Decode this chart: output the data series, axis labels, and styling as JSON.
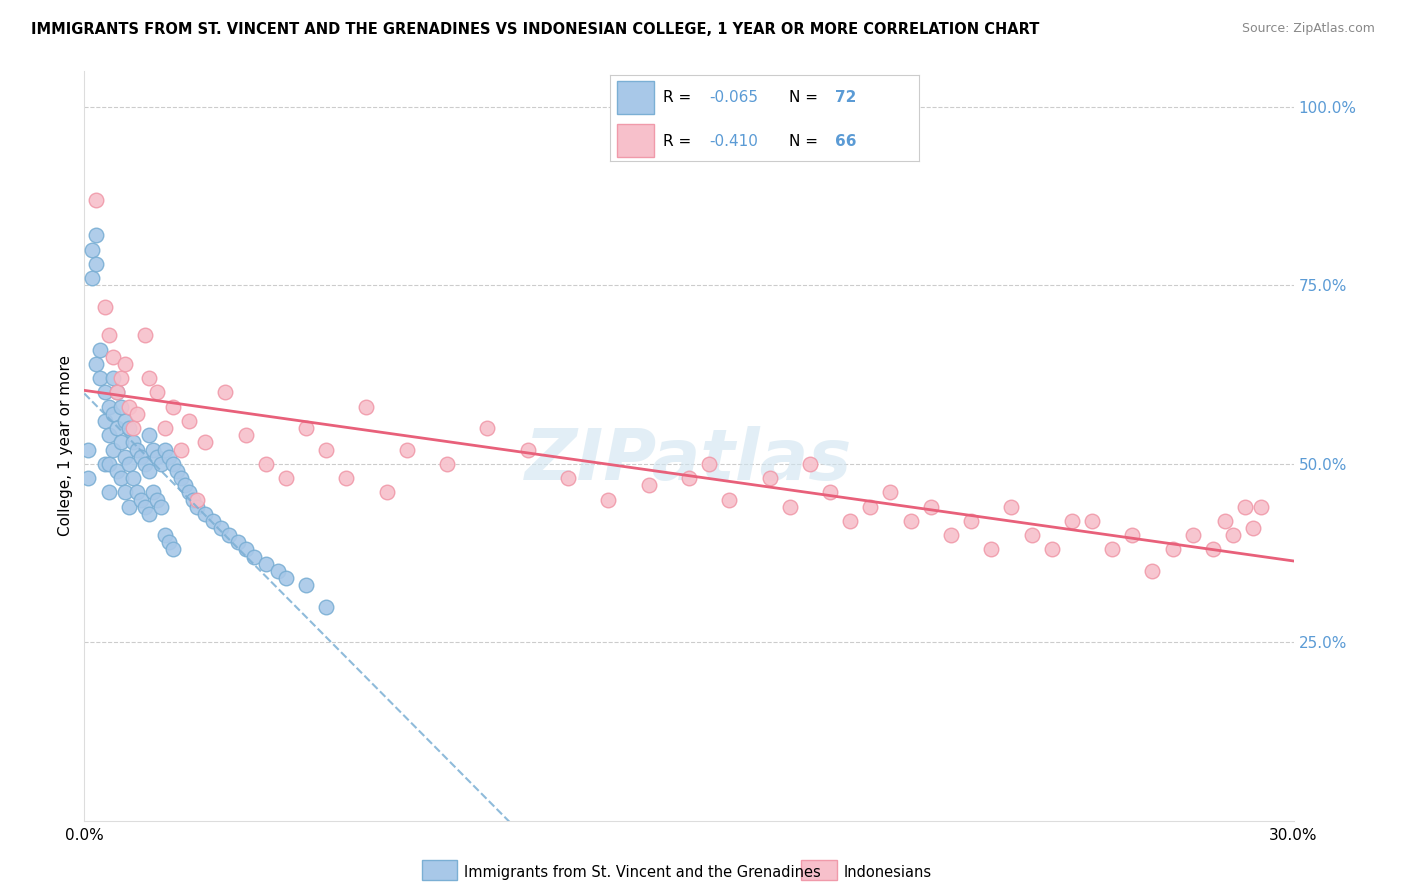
{
  "title": "IMMIGRANTS FROM ST. VINCENT AND THE GRENADINES VS INDONESIAN COLLEGE, 1 YEAR OR MORE CORRELATION CHART",
  "source": "Source: ZipAtlas.com",
  "ylabel": "College, 1 year or more",
  "xlim": [
    0.0,
    0.3
  ],
  "ylim": [
    0.0,
    1.05
  ],
  "yticks_right": [
    0.25,
    0.5,
    0.75,
    1.0
  ],
  "ytick_right_labels": [
    "25.0%",
    "50.0%",
    "75.0%",
    "100.0%"
  ],
  "blue_R": -0.065,
  "blue_N": 72,
  "pink_R": -0.41,
  "pink_N": 66,
  "blue_scatter_color": "#a8c8e8",
  "blue_edge_color": "#7bafd4",
  "pink_scatter_color": "#f7c0cb",
  "pink_edge_color": "#f09aaa",
  "blue_line_color": "#7bafd4",
  "pink_line_color": "#e8607a",
  "right_axis_color": "#5b9bd5",
  "legend_text_color": "#5b9bd5",
  "legend_label_blue": "Immigrants from St. Vincent and the Grenadines",
  "legend_label_pink": "Indonesians",
  "watermark": "ZIPatlas",
  "background_color": "#ffffff",
  "grid_color": "#cccccc",
  "blue_x": [
    0.001,
    0.001,
    0.002,
    0.002,
    0.003,
    0.003,
    0.003,
    0.004,
    0.004,
    0.005,
    0.005,
    0.005,
    0.006,
    0.006,
    0.006,
    0.006,
    0.007,
    0.007,
    0.007,
    0.008,
    0.008,
    0.008,
    0.009,
    0.009,
    0.009,
    0.01,
    0.01,
    0.01,
    0.011,
    0.011,
    0.011,
    0.012,
    0.012,
    0.013,
    0.013,
    0.014,
    0.014,
    0.015,
    0.015,
    0.016,
    0.016,
    0.016,
    0.017,
    0.017,
    0.018,
    0.018,
    0.019,
    0.019,
    0.02,
    0.02,
    0.021,
    0.021,
    0.022,
    0.022,
    0.023,
    0.024,
    0.025,
    0.026,
    0.027,
    0.028,
    0.03,
    0.032,
    0.034,
    0.036,
    0.038,
    0.04,
    0.042,
    0.045,
    0.048,
    0.05,
    0.055,
    0.06
  ],
  "blue_y": [
    0.52,
    0.48,
    0.8,
    0.76,
    0.64,
    0.82,
    0.78,
    0.66,
    0.62,
    0.6,
    0.56,
    0.5,
    0.58,
    0.54,
    0.5,
    0.46,
    0.62,
    0.57,
    0.52,
    0.6,
    0.55,
    0.49,
    0.58,
    0.53,
    0.48,
    0.56,
    0.51,
    0.46,
    0.55,
    0.5,
    0.44,
    0.53,
    0.48,
    0.52,
    0.46,
    0.51,
    0.45,
    0.5,
    0.44,
    0.54,
    0.49,
    0.43,
    0.52,
    0.46,
    0.51,
    0.45,
    0.5,
    0.44,
    0.52,
    0.4,
    0.51,
    0.39,
    0.5,
    0.38,
    0.49,
    0.48,
    0.47,
    0.46,
    0.45,
    0.44,
    0.43,
    0.42,
    0.41,
    0.4,
    0.39,
    0.38,
    0.37,
    0.36,
    0.35,
    0.34,
    0.33,
    0.3
  ],
  "pink_x": [
    0.003,
    0.005,
    0.006,
    0.007,
    0.008,
    0.009,
    0.01,
    0.011,
    0.012,
    0.013,
    0.015,
    0.016,
    0.018,
    0.02,
    0.022,
    0.024,
    0.026,
    0.028,
    0.03,
    0.035,
    0.04,
    0.045,
    0.05,
    0.055,
    0.06,
    0.065,
    0.07,
    0.075,
    0.08,
    0.09,
    0.1,
    0.11,
    0.12,
    0.13,
    0.14,
    0.15,
    0.155,
    0.16,
    0.17,
    0.175,
    0.18,
    0.185,
    0.19,
    0.195,
    0.2,
    0.205,
    0.21,
    0.215,
    0.22,
    0.225,
    0.23,
    0.235,
    0.24,
    0.245,
    0.25,
    0.255,
    0.26,
    0.265,
    0.27,
    0.275,
    0.28,
    0.283,
    0.285,
    0.288,
    0.29,
    0.292
  ],
  "pink_y": [
    0.87,
    0.72,
    0.68,
    0.65,
    0.6,
    0.62,
    0.64,
    0.58,
    0.55,
    0.57,
    0.68,
    0.62,
    0.6,
    0.55,
    0.58,
    0.52,
    0.56,
    0.45,
    0.53,
    0.6,
    0.54,
    0.5,
    0.48,
    0.55,
    0.52,
    0.48,
    0.58,
    0.46,
    0.52,
    0.5,
    0.55,
    0.52,
    0.48,
    0.45,
    0.47,
    0.48,
    0.5,
    0.45,
    0.48,
    0.44,
    0.5,
    0.46,
    0.42,
    0.44,
    0.46,
    0.42,
    0.44,
    0.4,
    0.42,
    0.38,
    0.44,
    0.4,
    0.38,
    0.42,
    0.42,
    0.38,
    0.4,
    0.35,
    0.38,
    0.4,
    0.38,
    0.42,
    0.4,
    0.44,
    0.41,
    0.44
  ]
}
